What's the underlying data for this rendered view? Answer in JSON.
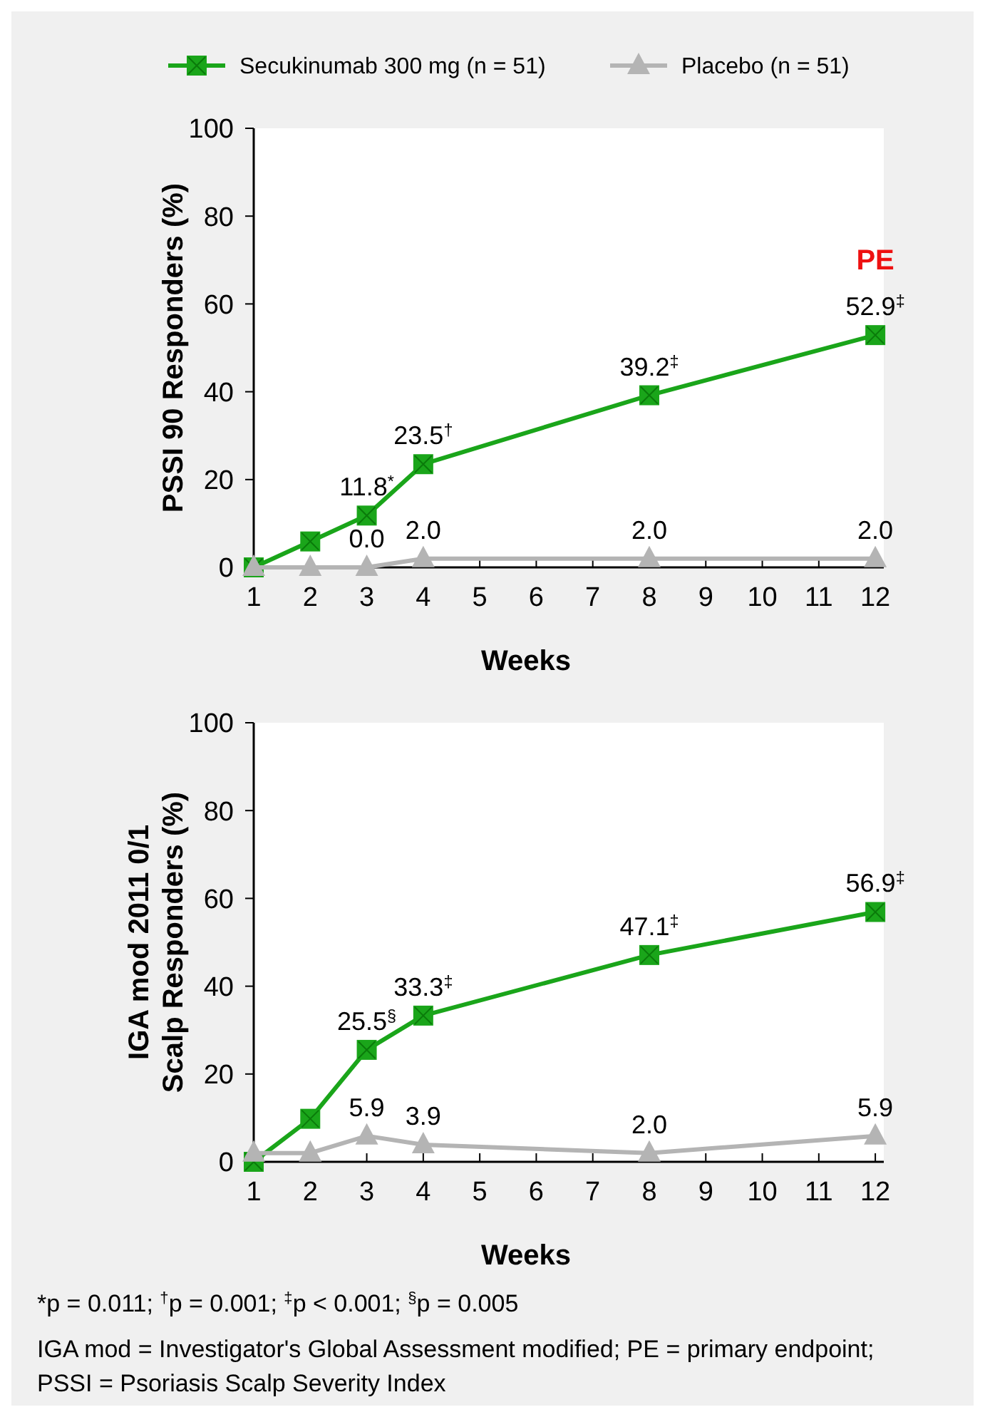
{
  "chart_data": [
    {
      "type": "line",
      "ylabel": "PSSI 90 Responders (%)",
      "xlabel": "Weeks",
      "xlim": [
        1,
        12.15
      ],
      "xticks": [
        1,
        2,
        3,
        4,
        5,
        6,
        7,
        8,
        9,
        10,
        11,
        12
      ],
      "ylim": [
        0,
        100
      ],
      "yticks": [
        0,
        20,
        40,
        60,
        80,
        100
      ],
      "legend": "top",
      "grid": false,
      "series": [
        {
          "name": "Secukinumab 300 mg (n = 51)",
          "color": "#1aa51a",
          "marker": "square",
          "x": [
            1,
            2,
            3,
            4,
            8,
            12
          ],
          "values": [
            0,
            5.9,
            11.8,
            23.5,
            39.2,
            52.9
          ],
          "value_labels": [
            null,
            null,
            "11.8$^{*}$",
            "23.5$^{†}$",
            "39.2$^{‡}$",
            "52.9$^{‡}$"
          ]
        },
        {
          "name": "Placebo (n = 51)",
          "color": "#b4b4b4",
          "marker": "triangle",
          "x": [
            1,
            2,
            3,
            4,
            8,
            12
          ],
          "values": [
            0,
            0,
            0,
            2.0,
            2.0,
            2.0
          ],
          "value_labels": [
            null,
            null,
            "0.0",
            "2.0",
            "2.0",
            "2.0"
          ]
        }
      ],
      "annotations": [
        {
          "text": "PE",
          "x": 12,
          "y": 52.9
        }
      ]
    },
    {
      "type": "line",
      "ylabel": "IGA mod 2011 0/1\nScalp Responders (%)",
      "xlabel": "Weeks",
      "xlim": [
        1,
        12.15
      ],
      "xticks": [
        1,
        2,
        3,
        4,
        5,
        6,
        7,
        8,
        9,
        10,
        11,
        12
      ],
      "ylim": [
        0,
        100
      ],
      "yticks": [
        0,
        20,
        40,
        60,
        80,
        100
      ],
      "grid": false,
      "series": [
        {
          "color": "#1aa51a",
          "marker": "square",
          "x": [
            1,
            2,
            3,
            4,
            8,
            12
          ],
          "values": [
            0,
            9.8,
            25.5,
            33.3,
            47.1,
            56.9
          ],
          "value_labels": [
            null,
            null,
            "25.5$^{§}$",
            "33.3$^{‡}$",
            "47.1$^{‡}$",
            "56.9$^{‡}$"
          ]
        },
        {
          "color": "#b4b4b4",
          "marker": "triangle",
          "x": [
            1,
            2,
            3,
            4,
            8,
            12
          ],
          "values": [
            2.0,
            2.0,
            5.9,
            3.9,
            2.0,
            5.9
          ],
          "value_labels": [
            null,
            null,
            "5.9",
            "3.9",
            "2.0",
            "5.9"
          ]
        }
      ],
      "annotations": [
        "*p = 0.011; $^{†}$p = 0.001; $^{‡}$p < 0.001; $^{§}$p = 0.005",
        "IGA mod = Investigator's Global Assessment modified; PE = primary endpoint;",
        "PSSI = Psoriasis Scalp Severity Index"
      ]
    }
  ]
}
